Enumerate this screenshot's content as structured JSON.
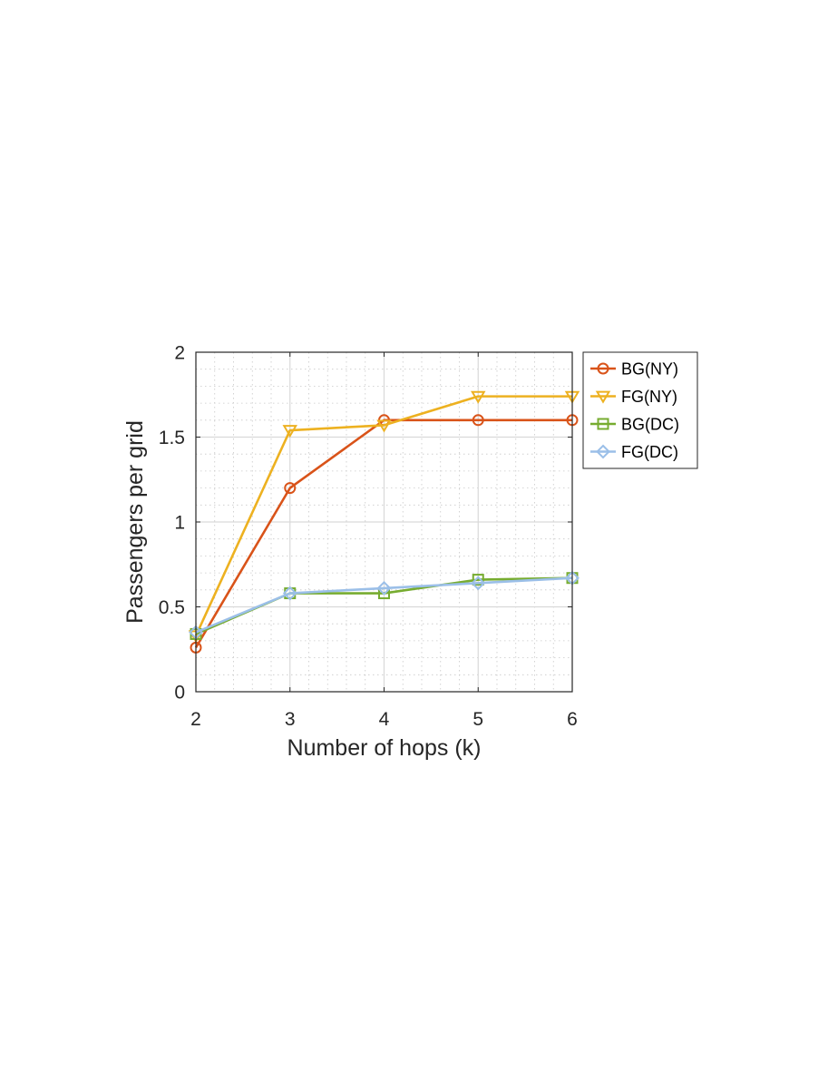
{
  "chart_data": {
    "type": "line",
    "title": "",
    "xlabel": "Number of hops (k)",
    "ylabel": "Passengers per grid",
    "x": [
      2,
      3,
      4,
      5,
      6
    ],
    "x_ticks": [
      "2",
      "3",
      "4",
      "5",
      "6"
    ],
    "y_ticks": [
      "0",
      "0.5",
      "1",
      "1.5",
      "2"
    ],
    "xlim": [
      2,
      6
    ],
    "ylim": [
      0,
      2
    ],
    "grid": true,
    "minor_grid": true,
    "legend_position": "outside-top-right",
    "series": [
      {
        "name": "BG(NY)",
        "values": [
          0.26,
          1.2,
          1.6,
          1.6,
          1.6
        ],
        "color": "#D95319",
        "marker": "circle"
      },
      {
        "name": "FG(NY)",
        "values": [
          0.33,
          1.54,
          1.57,
          1.74,
          1.74
        ],
        "color": "#EDB120",
        "marker": "triangle-down"
      },
      {
        "name": "BG(DC)",
        "values": [
          0.34,
          0.58,
          0.58,
          0.66,
          0.67
        ],
        "color": "#77AC30",
        "marker": "square"
      },
      {
        "name": "FG(DC)",
        "values": [
          0.35,
          0.58,
          0.61,
          0.64,
          0.67
        ],
        "color": "#9BBFE8",
        "marker": "diamond"
      }
    ]
  }
}
